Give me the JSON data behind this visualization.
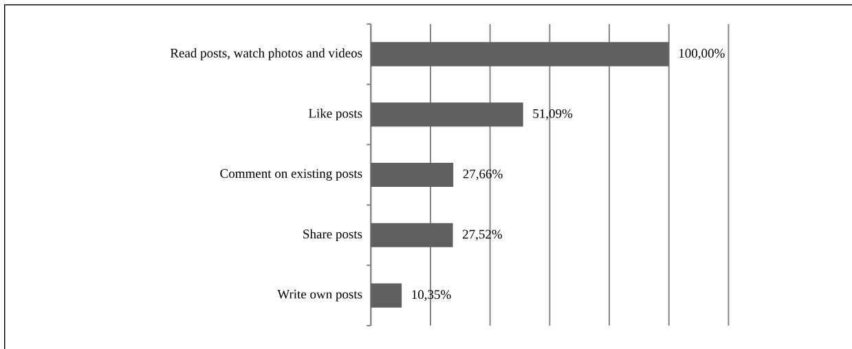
{
  "chart_data": {
    "type": "bar",
    "orientation": "horizontal",
    "categories": [
      "Read posts, watch photos and videos",
      "Like posts",
      "Comment on existing posts",
      "Share posts",
      "Write own posts"
    ],
    "values": [
      100,
      51.09,
      27.66,
      27.52,
      10.35
    ],
    "color": "#606060",
    "value_labels": [
      "100,00%",
      "51,09%",
      "27,66%",
      "27,52%",
      "10,35%"
    ],
    "xlim": [
      0,
      120
    ],
    "xticks": [
      {
        "value": 0,
        "label": null
      },
      {
        "value": 20,
        "label": null
      },
      {
        "value": 40,
        "label": null
      },
      {
        "value": 60,
        "label": null
      },
      {
        "value": 80,
        "label": null
      },
      {
        "value": 100,
        "label": null
      },
      {
        "value": 120,
        "label": null
      }
    ],
    "grid": "x",
    "tick_labels": "y"
  }
}
